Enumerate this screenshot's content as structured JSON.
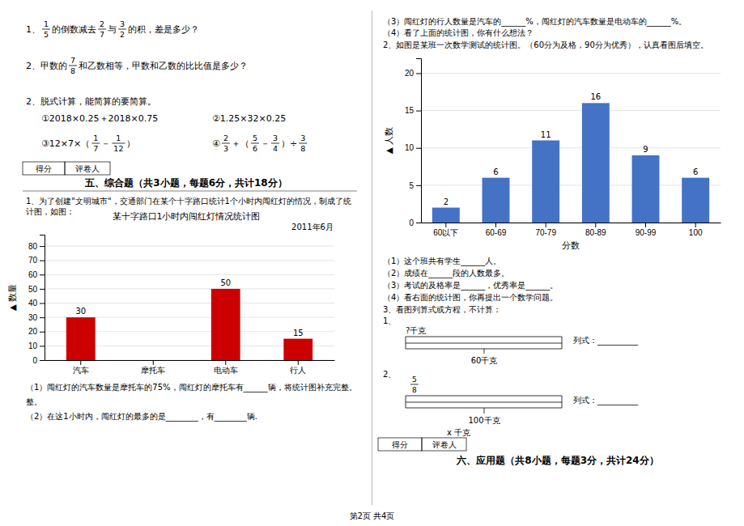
{
  "chart_data": [
    {
      "type": "bar",
      "title": "某十字路口1小时内闯红灯情况统计图",
      "subtitle": "2011年6月",
      "ylabel": "▲ 数量",
      "categories": [
        "汽车",
        "摩托车",
        "电动车",
        "行人"
      ],
      "values": [
        30,
        0,
        50,
        15
      ],
      "value_labels": [
        "30",
        null,
        "50",
        "15"
      ],
      "data_labels": true,
      "color": "#cc0000",
      "ylim": [
        0,
        88
      ],
      "yticks": [
        0,
        10,
        20,
        30,
        40,
        50,
        60,
        70,
        80
      ],
      "grid": true,
      "annotations": [
        "1、",
        "1",
        "5",
        "的倒数减去",
        "2",
        "7",
        "与",
        "3",
        "2",
        "的积，差是多少？",
        "2、甲数的",
        "7",
        "8",
        "和乙数相等，甲数和乙数的比比值是多少？",
        "2、脱式计算，能简算的要简算。",
        "①2018×0.25＋2018×0.75",
        "②1.25×32×0.25",
        "③12×7×（",
        "1",
        "7",
        "－",
        "1",
        "12",
        "）",
        "④",
        "2",
        "3",
        "＋（",
        "5",
        "6",
        "－",
        "3",
        "4",
        "）÷",
        "3",
        "8",
        "得分",
        "评卷人",
        "五、综合题（共3小题，每题6分，共计18分）",
        "1、为了创建\"文明城市\"，交通部门在某个十字路口统计1个小时内闯红灯的情况，制成了统",
        "计图，如图：",
        "（1）闯红灯的汽车数量是摩托车的75%，闯红灯的摩托车有______辆，将统计图补充完整。",
        "整。",
        "（2）在这1小时内，闯红灯的最多的是________，有________辆."
      ]
    },
    {
      "type": "bar",
      "xlabel": "分数",
      "ylabel": "▲ 人数",
      "categories": [
        "60以下",
        "60-69",
        "70-79",
        "80-89",
        "90-99",
        "100"
      ],
      "values": [
        2,
        6,
        11,
        16,
        9,
        6
      ],
      "data_labels": true,
      "color": "#4472c4",
      "ylim": [
        0,
        22
      ],
      "yticks": [
        0,
        5,
        10,
        15,
        20
      ],
      "grid": true,
      "annotations": [
        "（3）闯红灯的行人数量是汽车的______%，闯红灯的汽车数量是电动车的______%。",
        "（4）看了上面的统计图，你有什么想法？",
        "2、如图是某班一次数学测试的统计图。（60分为及格，90分为优秀），认真看图后填空。",
        "（1）这个班共有学生______人。",
        "（2）成绩在______段的人数最多。",
        "（3）考试的及格率是______，优秀率是______。",
        "（4）看右面的统计图，你再提出一个数学问题。",
        "3、看图列算式或方程，不计算：",
        "1、",
        "?千克",
        "60千克",
        "列式：__________",
        "2、",
        "5",
        "8",
        "100千克",
        "列式：__________",
        "x 千克",
        "得分",
        "评卷人",
        "六、应用题（共8小题，每题3分，共计24分）",
        "第2页 共4页"
      ]
    }
  ]
}
